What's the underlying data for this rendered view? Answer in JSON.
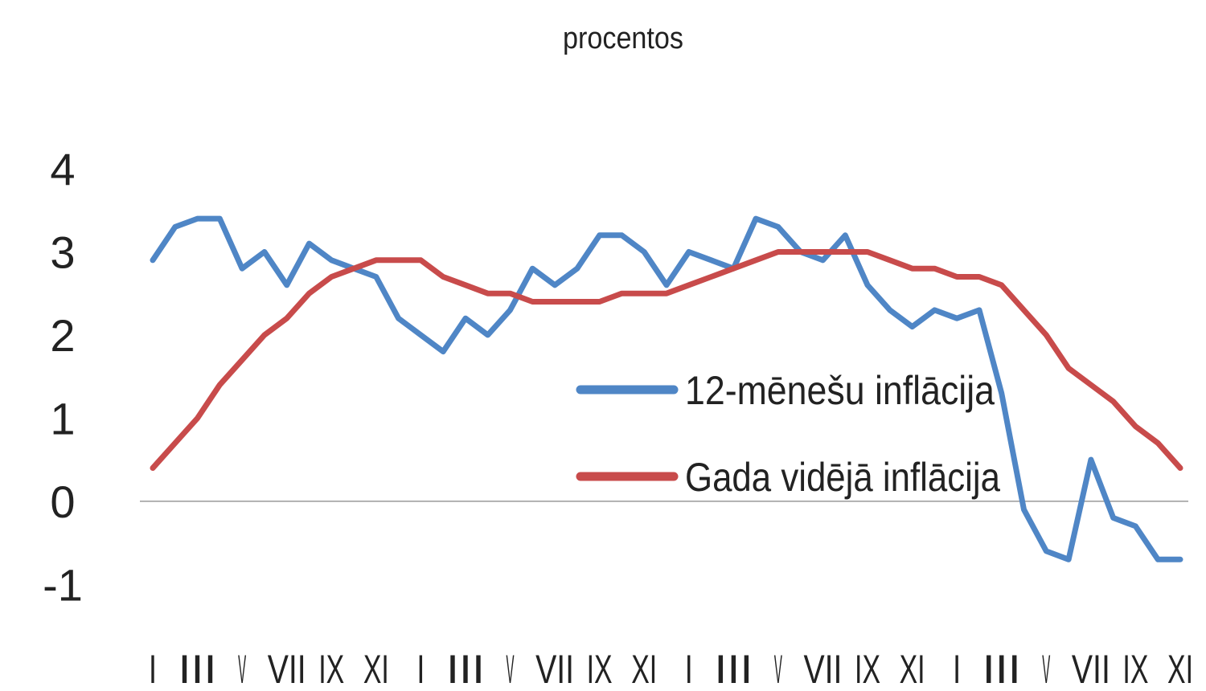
{
  "chart_data": {
    "type": "line",
    "title": "",
    "subtitle": "procentos",
    "xlabel": "",
    "ylabel": "",
    "ylim": [
      -1.2,
      4
    ],
    "y_ticks": [
      4,
      3,
      2,
      1,
      0,
      -1
    ],
    "y_tick_labels": [
      "4",
      "3",
      "2",
      "1",
      "0",
      "-1"
    ],
    "x_tick_labels": [
      "I",
      "III",
      "V",
      "VII",
      "IX",
      "XI",
      "I",
      "III",
      "V",
      "VII",
      "IX",
      "XI",
      "I",
      "III",
      "V",
      "VII",
      "IX",
      "XI",
      "I",
      "III",
      "V",
      "VII",
      "IX",
      "XI"
    ],
    "zero_line": true,
    "grid": false,
    "legend_position": "right-center",
    "colors": {
      "series_1": "#4f86c6",
      "series_2": "#c84b4b",
      "zero_line": "#999999",
      "text": "#222222"
    },
    "series": [
      {
        "name": "12-mēnešu inflācija",
        "values": [
          2.9,
          3.3,
          3.4,
          3.4,
          2.8,
          3.0,
          2.6,
          3.1,
          2.9,
          2.8,
          2.7,
          2.2,
          2.0,
          1.8,
          2.2,
          2.0,
          2.3,
          2.8,
          2.6,
          2.8,
          3.2,
          3.2,
          3.0,
          2.6,
          3.0,
          2.9,
          2.8,
          3.4,
          3.3,
          3.0,
          2.9,
          3.2,
          2.6,
          2.3,
          2.1,
          2.3,
          2.2,
          2.3,
          1.3,
          -0.1,
          -0.6,
          -0.7,
          0.5,
          -0.2,
          -0.3,
          -0.7,
          -0.7
        ]
      },
      {
        "name": "Gada vidējā inflācija",
        "values": [
          0.4,
          0.7,
          1.0,
          1.4,
          1.7,
          2.0,
          2.2,
          2.5,
          2.7,
          2.8,
          2.9,
          2.9,
          2.9,
          2.7,
          2.6,
          2.5,
          2.5,
          2.4,
          2.4,
          2.4,
          2.4,
          2.5,
          2.5,
          2.5,
          2.6,
          2.7,
          2.8,
          2.9,
          3.0,
          3.0,
          3.0,
          3.0,
          3.0,
          2.9,
          2.8,
          2.8,
          2.7,
          2.7,
          2.6,
          2.3,
          2.0,
          1.6,
          1.4,
          1.2,
          0.9,
          0.7,
          0.4
        ]
      }
    ]
  }
}
